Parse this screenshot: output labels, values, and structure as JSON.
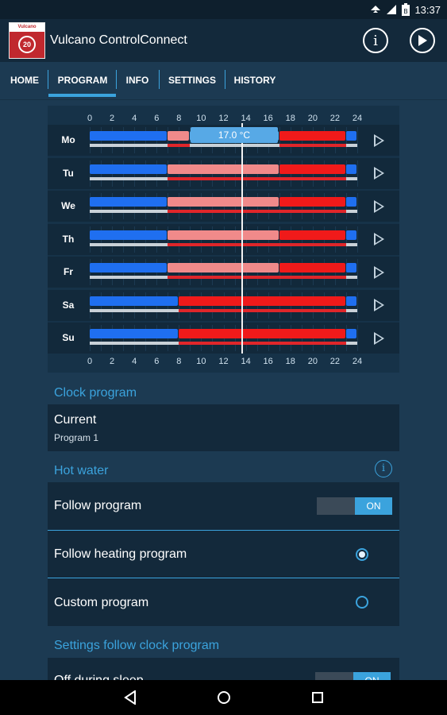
{
  "status": {
    "time": "13:37",
    "battery_icon": "battery-icon",
    "wifi_icon": "wifi-icon",
    "signal_icon": "signal-icon"
  },
  "app": {
    "logo_brand": "Vulcano",
    "logo_badge": "20",
    "title": "Vulcano ControlConnect",
    "info_icon": "info-icon",
    "play_icon": "play-icon"
  },
  "tabs": [
    {
      "label": "HOME"
    },
    {
      "label": "PROGRAM"
    },
    {
      "label": "INFO"
    },
    {
      "label": "SETTINGS"
    },
    {
      "label": "HISTORY"
    }
  ],
  "schedule": {
    "hours": [
      "0",
      "2",
      "4",
      "6",
      "8",
      "10",
      "12",
      "14",
      "16",
      "18",
      "20",
      "22",
      "24"
    ],
    "temp_tooltip": "17.0 °C",
    "days": [
      {
        "label": "Mo",
        "segments": [
          {
            "start": 0,
            "end": 7,
            "type": "cold"
          },
          {
            "start": 7,
            "end": 9,
            "type": "eco"
          },
          {
            "start": 9,
            "end": 17,
            "type": "tip"
          },
          {
            "start": 17,
            "end": 23,
            "type": "comfort"
          },
          {
            "start": 23,
            "end": 24,
            "type": "cold"
          }
        ]
      },
      {
        "label": "Tu",
        "segments": [
          {
            "start": 0,
            "end": 7,
            "type": "cold"
          },
          {
            "start": 7,
            "end": 17,
            "type": "eco"
          },
          {
            "start": 17,
            "end": 23,
            "type": "comfort"
          },
          {
            "start": 23,
            "end": 24,
            "type": "cold"
          }
        ]
      },
      {
        "label": "We",
        "segments": [
          {
            "start": 0,
            "end": 7,
            "type": "cold"
          },
          {
            "start": 7,
            "end": 17,
            "type": "eco"
          },
          {
            "start": 17,
            "end": 23,
            "type": "comfort"
          },
          {
            "start": 23,
            "end": 24,
            "type": "cold"
          }
        ]
      },
      {
        "label": "Th",
        "segments": [
          {
            "start": 0,
            "end": 7,
            "type": "cold"
          },
          {
            "start": 7,
            "end": 17,
            "type": "eco"
          },
          {
            "start": 17,
            "end": 23,
            "type": "comfort"
          },
          {
            "start": 23,
            "end": 24,
            "type": "cold"
          }
        ]
      },
      {
        "label": "Fr",
        "segments": [
          {
            "start": 0,
            "end": 7,
            "type": "cold"
          },
          {
            "start": 7,
            "end": 17,
            "type": "eco"
          },
          {
            "start": 17,
            "end": 23,
            "type": "comfort"
          },
          {
            "start": 23,
            "end": 24,
            "type": "cold"
          }
        ]
      },
      {
        "label": "Sa",
        "segments": [
          {
            "start": 0,
            "end": 8,
            "type": "cold"
          },
          {
            "start": 8,
            "end": 23,
            "type": "comfort"
          },
          {
            "start": 23,
            "end": 24,
            "type": "cold"
          }
        ]
      },
      {
        "label": "Su",
        "segments": [
          {
            "start": 0,
            "end": 8,
            "type": "cold"
          },
          {
            "start": 8,
            "end": 23,
            "type": "comfort"
          },
          {
            "start": 23,
            "end": 24,
            "type": "cold"
          }
        ]
      }
    ],
    "colors": {
      "cold": "#1f6ff0",
      "eco": "#f08a8a",
      "comfort": "#f01a1a",
      "tip": "#57a9e6"
    }
  },
  "clock_program": {
    "section_title": "Clock program",
    "current_label": "Current",
    "current_value": "Program 1"
  },
  "hot_water": {
    "section_title": "Hot water",
    "info_icon": "info-icon",
    "follow_program_label": "Follow program",
    "follow_program_toggle": "ON",
    "follow_heating_label": "Follow heating program",
    "custom_label": "Custom program"
  },
  "settings_follow": {
    "section_title": "Settings follow clock program",
    "off_during_sleep_label": "Off during sleep",
    "off_during_sleep_toggle": "ON"
  },
  "nav": {
    "back_icon": "back-icon",
    "home_icon": "home-icon",
    "recents_icon": "recents-icon"
  }
}
